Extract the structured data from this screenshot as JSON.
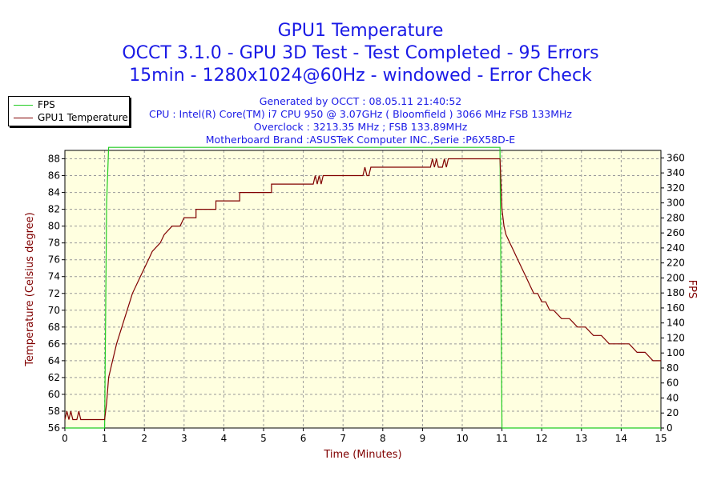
{
  "titles": {
    "line1": "GPU1 Temperature",
    "line2": "OCCT 3.1.0 - GPU 3D Test - Test Completed - 95 Errors",
    "line3": "15min - 1280x1024@60Hz - windowed - Error Check"
  },
  "info": {
    "generated": "Generated by OCCT : 08.05.11 21:40:52",
    "cpu": "CPU : Intel(R) Core(TM) i7 CPU 950 @ 3.07GHz ( Bloomfield ) 3066 MHz FSB 133MHz",
    "overclock": "Overclock : 3213.35 MHz ; FSB 133.89MHz",
    "motherboard": "Motherboard Brand :ASUSTeK Computer INC.,Serie :P6X58D-E"
  },
  "legend": [
    {
      "label": "FPS",
      "color": "#22cc22"
    },
    {
      "label": "GPU1 Temperature",
      "color": "#800000"
    }
  ],
  "colors": {
    "plot_bg": "#ffffe0",
    "fps": "#22cc22",
    "temp": "#800000",
    "grid": "#999999",
    "title": "#1a1ae6",
    "axis_label": "#800000"
  },
  "chart_data": {
    "type": "line",
    "xlabel": "Time (Minutes)",
    "ylabel": "Temperature (Celsius degree)",
    "y2label": "FPS",
    "xlim": [
      0,
      15
    ],
    "ylim": [
      56,
      89
    ],
    "y2lim": [
      0,
      370
    ],
    "x_ticks": [
      0,
      1,
      2,
      3,
      4,
      5,
      6,
      7,
      8,
      9,
      10,
      11,
      12,
      13,
      14,
      15
    ],
    "y_ticks": [
      56,
      58,
      60,
      62,
      64,
      66,
      68,
      70,
      72,
      74,
      76,
      78,
      80,
      82,
      84,
      86,
      88
    ],
    "y2_ticks": [
      0,
      20,
      40,
      60,
      80,
      100,
      120,
      140,
      160,
      180,
      200,
      220,
      240,
      260,
      280,
      300,
      320,
      340,
      360
    ],
    "grid": true,
    "legend_position": "top-left",
    "series": [
      {
        "name": "FPS",
        "axis": "right",
        "x": [
          0,
          1.0,
          1.05,
          1.1,
          10.9,
          10.95,
          11.0,
          15
        ],
        "y": [
          0,
          0,
          300,
          374,
          374,
          374,
          0,
          0
        ]
      },
      {
        "name": "GPU1 Temperature",
        "axis": "left",
        "x": [
          0,
          0.05,
          0.1,
          0.15,
          0.2,
          0.25,
          0.3,
          0.35,
          0.4,
          0.45,
          0.5,
          1.0,
          1.05,
          1.1,
          1.2,
          1.3,
          1.5,
          1.7,
          1.9,
          2.0,
          2.1,
          2.2,
          2.4,
          2.5,
          2.7,
          2.9,
          3.0,
          3.3,
          3.3,
          3.8,
          3.8,
          4.4,
          4.4,
          5.0,
          5.0,
          5.2,
          5.2,
          5.8,
          5.8,
          6.25,
          6.3,
          6.35,
          6.4,
          6.45,
          6.5,
          6.6,
          6.6,
          7.5,
          7.55,
          7.6,
          7.65,
          7.7,
          7.8,
          7.8,
          9.2,
          9.25,
          9.3,
          9.35,
          9.4,
          9.5,
          9.55,
          9.6,
          9.65,
          9.7,
          10.95,
          11.0,
          11.05,
          11.1,
          11.2,
          11.3,
          11.4,
          11.5,
          11.6,
          11.7,
          11.8,
          11.9,
          12.0,
          12.1,
          12.2,
          12.3,
          12.5,
          12.7,
          12.9,
          13.1,
          13.3,
          13.5,
          13.7,
          14.0,
          14.2,
          14.4,
          14.6,
          14.8,
          15.0
        ],
        "y": [
          57,
          58,
          57,
          58,
          57,
          57,
          57,
          58,
          57,
          57,
          57,
          57,
          59,
          62,
          64,
          66,
          69,
          72,
          74,
          75,
          76,
          77,
          78,
          79,
          80,
          80,
          81,
          81,
          82,
          82,
          83,
          83,
          84,
          84,
          84,
          84,
          85,
          85,
          85,
          85,
          86,
          85,
          86,
          85,
          86,
          86,
          86,
          86,
          87,
          86,
          86,
          87,
          87,
          87,
          87,
          88,
          87,
          88,
          87,
          87,
          88,
          87,
          88,
          88,
          88,
          82,
          80,
          79,
          78,
          77,
          76,
          75,
          74,
          73,
          72,
          72,
          71,
          71,
          70,
          70,
          69,
          69,
          68,
          68,
          67,
          67,
          66,
          66,
          66,
          65,
          65,
          64,
          64
        ]
      }
    ]
  }
}
